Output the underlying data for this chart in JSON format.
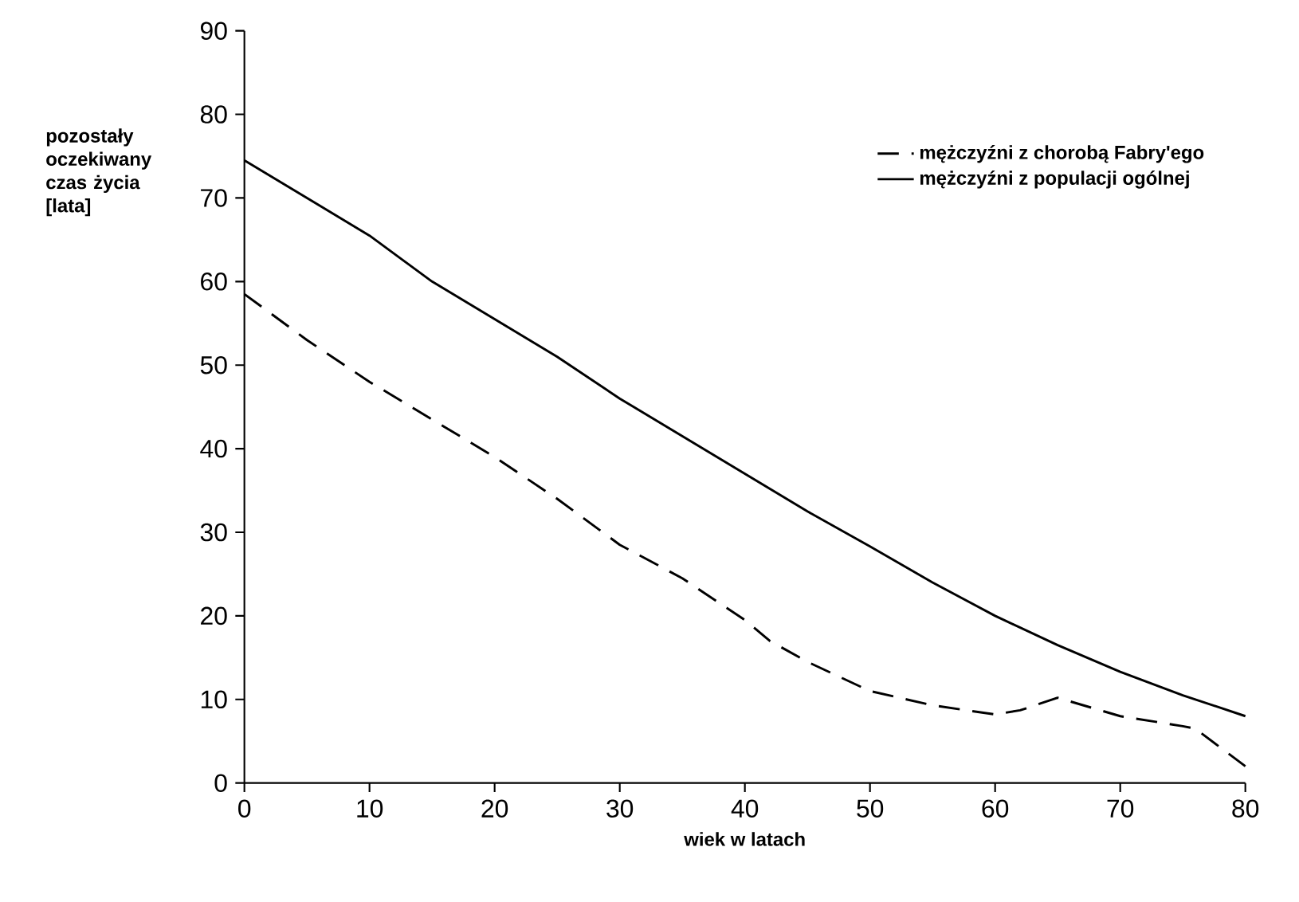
{
  "chart_data": {
    "type": "line",
    "xlabel": "wiek w latach",
    "ylabel": "pozostały oczekiwany czas życia [lata]",
    "xlim": [
      0,
      80
    ],
    "xticks": [
      0,
      10,
      20,
      30,
      40,
      50,
      60,
      70,
      80
    ],
    "ylim": [
      0,
      90
    ],
    "yticks": [
      0,
      10,
      20,
      30,
      40,
      50,
      60,
      70,
      80,
      90
    ],
    "grid": false,
    "legend": "top right",
    "marker": "none",
    "series": [
      {
        "name": "mężczyźni z chorobą Fabry'ego",
        "color": "#000000",
        "line_style": "dashed",
        "x": [
          0,
          5,
          10,
          15,
          20,
          25,
          30,
          35,
          40,
          42,
          45,
          50,
          55,
          60,
          62,
          65,
          70,
          75,
          76,
          80
        ],
        "values": [
          58.5,
          53,
          48,
          43.5,
          39,
          34,
          28.5,
          24.5,
          19.5,
          17,
          14.5,
          11,
          9.3,
          8.2,
          8.7,
          10.2,
          8,
          6.8,
          6.5,
          2
        ]
      },
      {
        "name": "mężczyźni z populacji ogólnej",
        "color": "#000000",
        "line_style": "solid",
        "x": [
          0,
          5,
          10,
          15,
          20,
          25,
          30,
          35,
          40,
          45,
          50,
          55,
          60,
          65,
          70,
          75,
          80
        ],
        "values": [
          74.5,
          70,
          65.5,
          60,
          55.5,
          51,
          46,
          41.5,
          37,
          32.5,
          28.3,
          24,
          20,
          16.5,
          13.3,
          10.5,
          8
        ]
      }
    ]
  }
}
